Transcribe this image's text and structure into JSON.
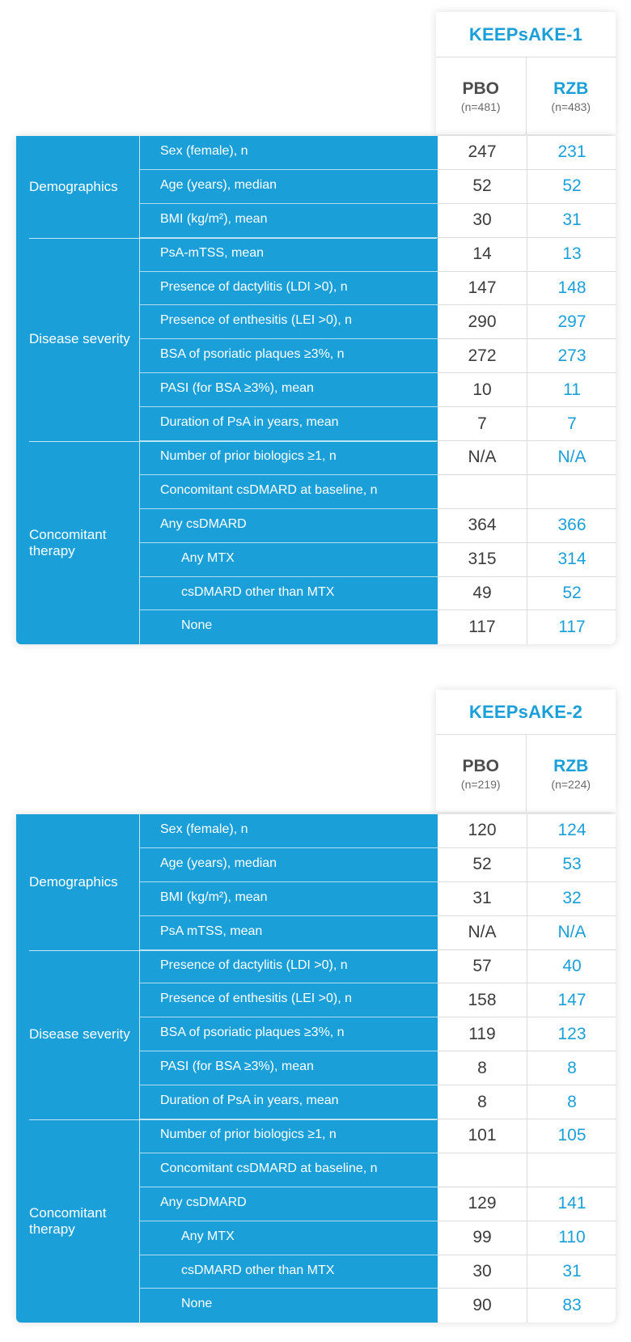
{
  "tables": [
    {
      "study": "KEEPsAKE-1",
      "arms": [
        {
          "name": "PBO",
          "n": "(n=481)"
        },
        {
          "name": "RZB",
          "n": "(n=483)"
        }
      ],
      "groups": [
        {
          "title": "Demographics",
          "rows": [
            {
              "label": "Sex (female), n",
              "pbo": "247",
              "rzb": "231"
            },
            {
              "label": "Age (years), median",
              "pbo": "52",
              "rzb": "52"
            },
            {
              "label": "BMI (kg/m²), mean",
              "pbo": "30",
              "rzb": "31"
            }
          ]
        },
        {
          "title": "Disease severity",
          "rows": [
            {
              "label": "PsA-mTSS, mean",
              "pbo": "14",
              "rzb": "13"
            },
            {
              "label": "Presence of dactylitis (LDI >0), n",
              "pbo": "147",
              "rzb": "148"
            },
            {
              "label": "Presence of enthesitis (LEI >0), n",
              "pbo": "290",
              "rzb": "297"
            },
            {
              "label": "BSA of psoriatic plaques ≥3%, n",
              "pbo": "272",
              "rzb": "273"
            },
            {
              "label": "PASI (for BSA ≥3%), mean",
              "pbo": "10",
              "rzb": "11"
            },
            {
              "label": "Duration of PsA in years, mean",
              "pbo": "7",
              "rzb": "7"
            }
          ]
        },
        {
          "title": "Concomitant therapy",
          "rows": [
            {
              "label": "Number of prior biologics ≥1, n",
              "pbo": "N/A",
              "rzb": "N/A"
            },
            {
              "label": "Concomitant csDMARD at baseline, n",
              "pbo": "",
              "rzb": ""
            },
            {
              "label": "Any csDMARD",
              "pbo": "364",
              "rzb": "366"
            },
            {
              "label": "Any MTX",
              "pbo": "315",
              "rzb": "314",
              "indent": true
            },
            {
              "label": "csDMARD other than MTX",
              "pbo": "49",
              "rzb": "52",
              "indent": true
            },
            {
              "label": "None",
              "pbo": "117",
              "rzb": "117",
              "indent": true
            }
          ]
        }
      ]
    },
    {
      "study": "KEEPsAKE-2",
      "arms": [
        {
          "name": "PBO",
          "n": "(n=219)"
        },
        {
          "name": "RZB",
          "n": "(n=224)"
        }
      ],
      "groups": [
        {
          "title": "Demographics",
          "rows": [
            {
              "label": "Sex (female), n",
              "pbo": "120",
              "rzb": "124"
            },
            {
              "label": "Age (years), median",
              "pbo": "52",
              "rzb": "53"
            },
            {
              "label": "BMI (kg/m²), mean",
              "pbo": "31",
              "rzb": "32"
            },
            {
              "label": "PsA mTSS, mean",
              "pbo": "N/A",
              "rzb": "N/A"
            }
          ]
        },
        {
          "title": "Disease severity",
          "rows": [
            {
              "label": "Presence of dactylitis (LDI >0), n",
              "pbo": "57",
              "rzb": "40"
            },
            {
              "label": "Presence of enthesitis (LEI >0), n",
              "pbo": "158",
              "rzb": "147"
            },
            {
              "label": "BSA of psoriatic plaques ≥3%, n",
              "pbo": "119",
              "rzb": "123"
            },
            {
              "label": "PASI (for BSA ≥3%), mean",
              "pbo": "8",
              "rzb": "8"
            },
            {
              "label": "Duration of PsA in years, mean",
              "pbo": "8",
              "rzb": "8"
            }
          ]
        },
        {
          "title": "Concomitant therapy",
          "rows": [
            {
              "label": "Number of prior biologics ≥1, n",
              "pbo": "101",
              "rzb": "105"
            },
            {
              "label": "Concomitant csDMARD at baseline, n",
              "pbo": "",
              "rzb": ""
            },
            {
              "label": "Any csDMARD",
              "pbo": "129",
              "rzb": "141"
            },
            {
              "label": "Any MTX",
              "pbo": "99",
              "rzb": "110",
              "indent": true
            },
            {
              "label": "csDMARD other than MTX",
              "pbo": "30",
              "rzb": "31",
              "indent": true
            },
            {
              "label": "None",
              "pbo": "90",
              "rzb": "83",
              "indent": true
            }
          ]
        }
      ]
    }
  ]
}
